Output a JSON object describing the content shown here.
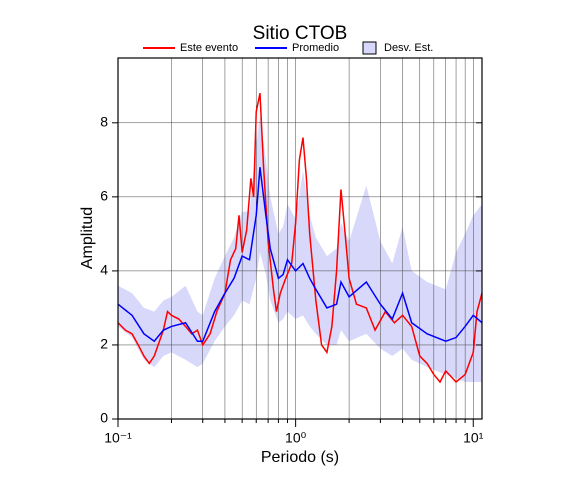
{
  "chart_data": {
    "type": "line",
    "title": "Sitio CTOB",
    "xlabel": "Periodo (s)",
    "ylabel": "Amplitud",
    "xscale": "log",
    "xlim": [
      0.1,
      11.2
    ],
    "ylim": [
      0,
      9.75
    ],
    "xticks": [
      {
        "value": 0.1,
        "label": "10⁻¹"
      },
      {
        "value": 1,
        "label": "10⁰"
      },
      {
        "value": 10,
        "label": "10¹"
      }
    ],
    "xminor": [
      0.2,
      0.3,
      0.4,
      0.5,
      0.6,
      0.7,
      0.8,
      0.9,
      2,
      3,
      4,
      5,
      6,
      7,
      8,
      9
    ],
    "yticks": [
      0,
      2,
      4,
      6,
      8
    ],
    "grid": true,
    "series": [
      {
        "name": "Este evento",
        "color": "#ff0000",
        "x": [
          0.1,
          0.11,
          0.12,
          0.13,
          0.14,
          0.15,
          0.16,
          0.18,
          0.19,
          0.2,
          0.22,
          0.24,
          0.26,
          0.28,
          0.3,
          0.33,
          0.36,
          0.4,
          0.43,
          0.46,
          0.48,
          0.5,
          0.53,
          0.56,
          0.58,
          0.6,
          0.63,
          0.66,
          0.7,
          0.75,
          0.78,
          0.82,
          0.88,
          0.95,
          1.0,
          1.05,
          1.1,
          1.15,
          1.2,
          1.3,
          1.4,
          1.5,
          1.6,
          1.7,
          1.8,
          1.9,
          2.0,
          2.2,
          2.5,
          2.8,
          3.2,
          3.6,
          4.0,
          4.5,
          5.0,
          5.5,
          6.0,
          6.5,
          7.0,
          8.0,
          9.0,
          10,
          10.5,
          11.2
        ],
        "values": [
          2.6,
          2.4,
          2.3,
          2.0,
          1.7,
          1.5,
          1.7,
          2.4,
          2.9,
          2.8,
          2.7,
          2.5,
          2.3,
          2.4,
          2.0,
          2.3,
          2.9,
          3.4,
          4.3,
          4.6,
          5.5,
          4.5,
          5.1,
          6.5,
          6.0,
          8.3,
          8.8,
          6.8,
          4.8,
          3.5,
          2.9,
          3.4,
          3.8,
          4.2,
          5.3,
          7.0,
          7.6,
          6.5,
          5.0,
          3.2,
          2.0,
          1.8,
          2.5,
          4.0,
          6.2,
          5.0,
          3.8,
          3.1,
          3.0,
          2.4,
          2.9,
          2.6,
          2.8,
          2.5,
          1.7,
          1.5,
          1.2,
          1.0,
          1.3,
          1.0,
          1.2,
          1.8,
          2.9,
          3.4
        ]
      },
      {
        "name": "Promedio",
        "color": "#0000ff",
        "x": [
          0.1,
          0.12,
          0.14,
          0.16,
          0.18,
          0.2,
          0.24,
          0.28,
          0.3,
          0.35,
          0.4,
          0.45,
          0.5,
          0.55,
          0.6,
          0.63,
          0.68,
          0.72,
          0.8,
          0.85,
          0.9,
          1.0,
          1.1,
          1.2,
          1.3,
          1.5,
          1.7,
          1.8,
          2.0,
          2.5,
          3.0,
          3.5,
          4.0,
          4.5,
          5.5,
          7,
          8,
          9,
          10,
          11.2
        ],
        "values": [
          3.1,
          2.8,
          2.3,
          2.1,
          2.4,
          2.5,
          2.6,
          2.1,
          2.1,
          2.9,
          3.4,
          3.8,
          4.4,
          4.3,
          5.5,
          6.8,
          5.5,
          4.6,
          3.8,
          3.9,
          4.3,
          4.0,
          4.2,
          3.8,
          3.5,
          3.0,
          3.1,
          3.7,
          3.3,
          3.7,
          3.1,
          2.7,
          3.4,
          2.6,
          2.3,
          2.1,
          2.2,
          2.5,
          2.8,
          2.6
        ]
      }
    ],
    "band": {
      "name": "Desv. Est.",
      "color": "#d8d8fa",
      "x": [
        0.1,
        0.12,
        0.14,
        0.16,
        0.18,
        0.2,
        0.24,
        0.28,
        0.3,
        0.35,
        0.4,
        0.45,
        0.5,
        0.55,
        0.6,
        0.63,
        0.68,
        0.72,
        0.8,
        0.85,
        0.9,
        1.0,
        1.1,
        1.2,
        1.3,
        1.5,
        1.7,
        1.8,
        2.0,
        2.5,
        3.0,
        3.5,
        4.0,
        4.5,
        5.5,
        7,
        8,
        9,
        10,
        11.2
      ],
      "lower": [
        2.5,
        2.2,
        1.6,
        1.4,
        1.7,
        1.8,
        1.6,
        1.4,
        1.5,
        2.1,
        2.5,
        2.8,
        3.2,
        3.1,
        3.8,
        4.5,
        3.9,
        3.2,
        2.6,
        2.7,
        2.9,
        2.7,
        2.8,
        2.5,
        2.3,
        2.0,
        2.0,
        2.4,
        2.1,
        2.3,
        1.9,
        1.7,
        1.9,
        1.6,
        1.4,
        1.2,
        1.1,
        1.0,
        1.0,
        1.0
      ],
      "upper": [
        3.6,
        3.4,
        3.0,
        2.9,
        3.2,
        3.3,
        3.6,
        2.9,
        2.8,
        3.8,
        4.4,
        4.9,
        5.6,
        5.6,
        7.4,
        8.2,
        7.0,
        6.0,
        5.0,
        5.2,
        5.8,
        5.4,
        6.7,
        5.5,
        4.9,
        4.4,
        4.6,
        5.3,
        4.8,
        6.3,
        4.8,
        4.2,
        5.2,
        4.0,
        3.7,
        3.5,
        4.5,
        5.0,
        5.5,
        5.8
      ]
    },
    "legend": "top"
  }
}
